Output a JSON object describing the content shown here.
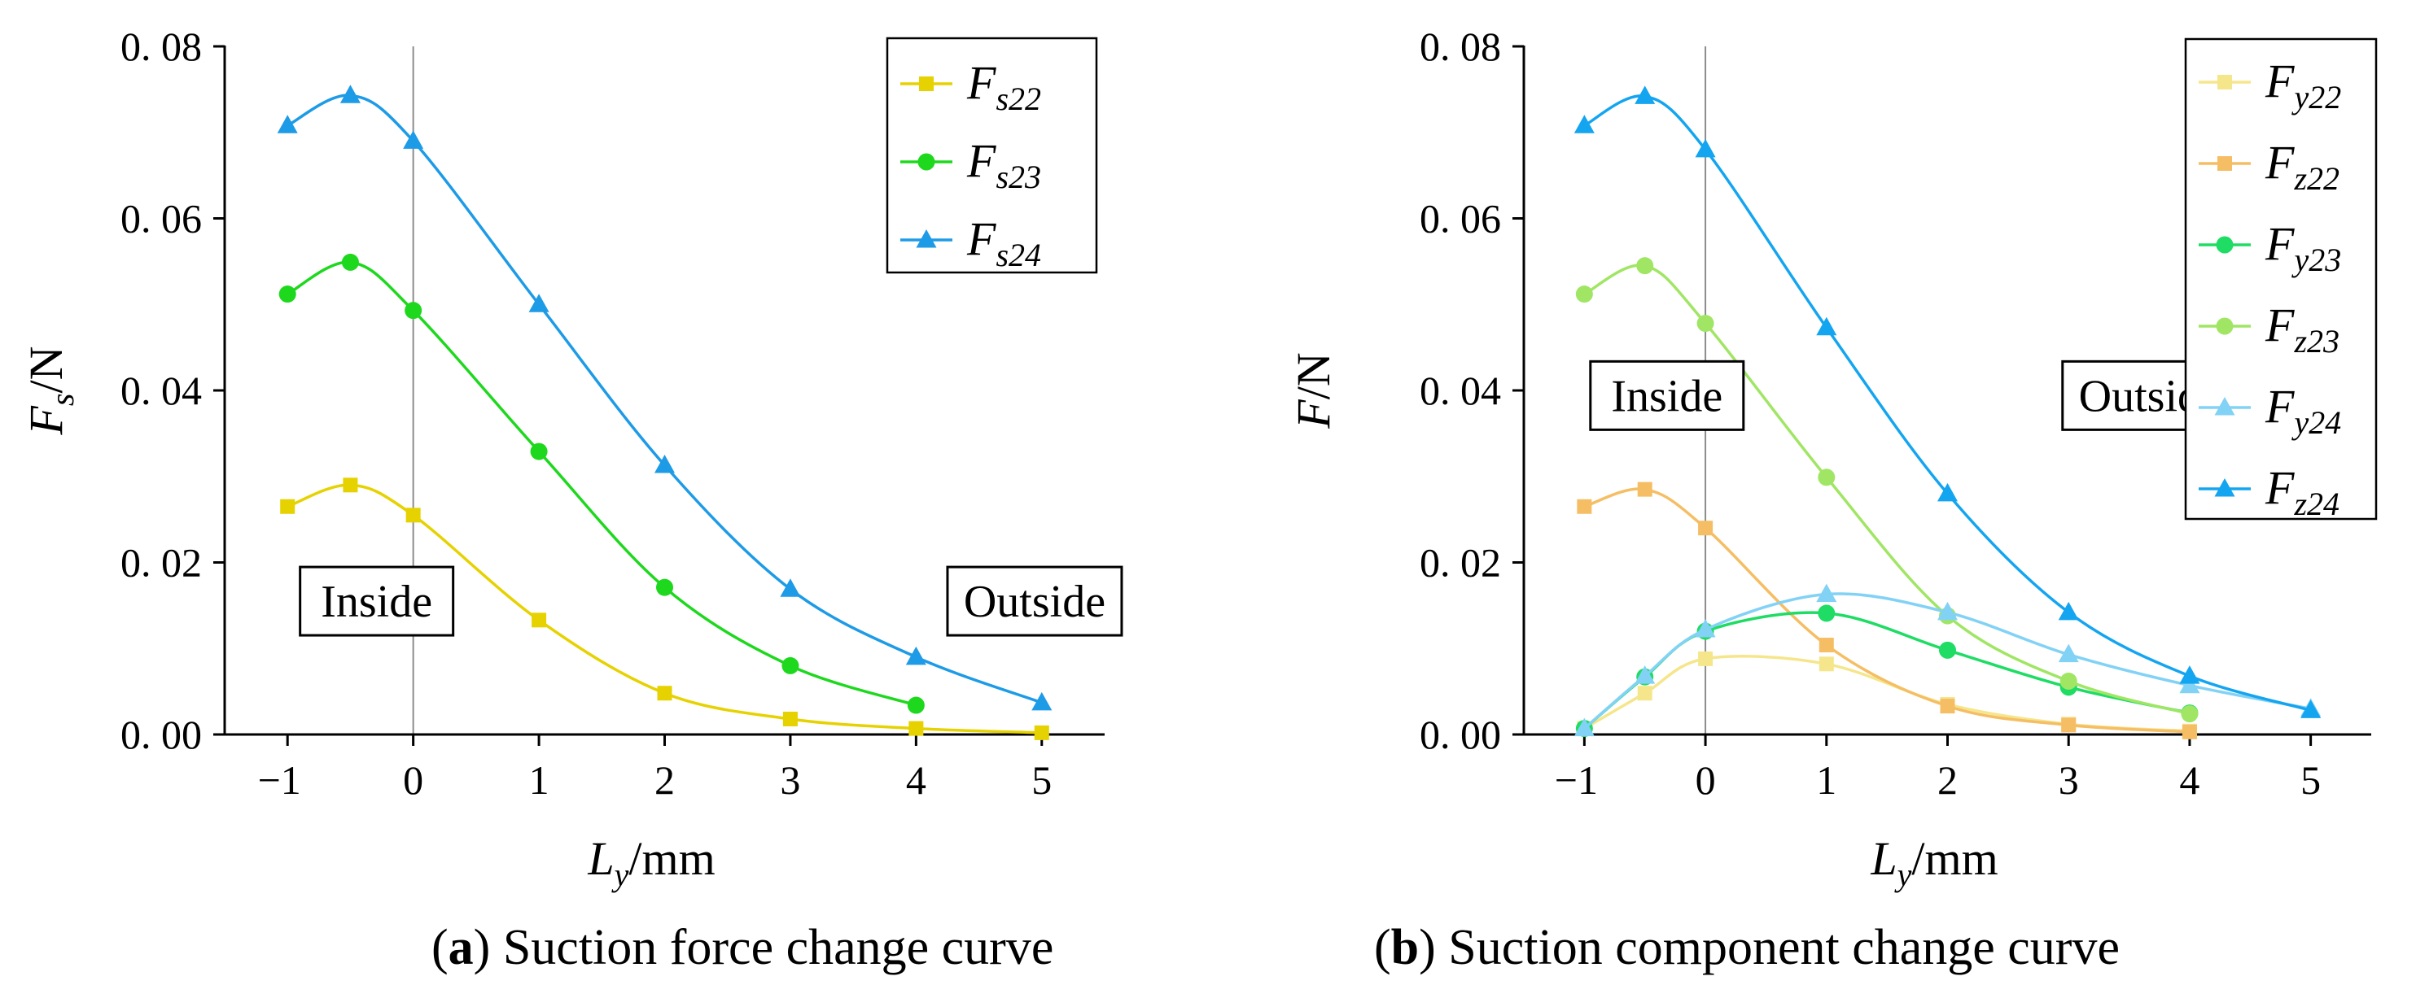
{
  "chart_data": [
    {
      "type": "line",
      "panel": "a",
      "caption_letter": "a",
      "caption_text": "Suction force change curve",
      "ylabel": {
        "main": "F",
        "sub": "s",
        "rest": "/N"
      },
      "xlabel": {
        "main": "L",
        "sub": "y",
        "rest": "/mm"
      },
      "xlim": [
        -1.5,
        5.5
      ],
      "ylim": [
        0,
        0.08
      ],
      "xticks": [
        {
          "value": -1,
          "label": "−1"
        },
        {
          "value": 0,
          "label": "0",
          "color": "#e8191e"
        },
        {
          "value": 1,
          "label": "1"
        },
        {
          "value": 2,
          "label": "2"
        },
        {
          "value": 3,
          "label": "3"
        },
        {
          "value": 4,
          "label": "4"
        },
        {
          "value": 5,
          "label": "5"
        }
      ],
      "yticks": [
        {
          "value": 0,
          "label": "0. 00"
        },
        {
          "value": 0.02,
          "label": "0. 02"
        },
        {
          "value": 0.04,
          "label": "0. 04"
        },
        {
          "value": 0.06,
          "label": "0. 06"
        },
        {
          "value": 0.08,
          "label": "0. 08"
        }
      ],
      "annotations": [
        {
          "text": "Inside",
          "x": -0.9,
          "y": 0.0155
        },
        {
          "text": "Outside",
          "x": 4.25,
          "y": 0.0155
        }
      ],
      "legend_position": "top-right",
      "series": [
        {
          "name": "Fs22",
          "main": "F",
          "sub": "s22",
          "color": "#e6d200",
          "marker": "square",
          "x": [
            -1,
            -0.5,
            0,
            1,
            2,
            3,
            4,
            5
          ],
          "y": [
            0.0265,
            0.029,
            0.0255,
            0.0133,
            0.0048,
            0.0018,
            0.0007,
            0.0002
          ]
        },
        {
          "name": "Fs23",
          "main": "F",
          "sub": "s23",
          "color": "#1ed81e",
          "marker": "circle",
          "x": [
            -1,
            -0.5,
            0,
            1,
            2,
            3,
            4
          ],
          "y": [
            0.0512,
            0.0549,
            0.0493,
            0.0329,
            0.0171,
            0.008,
            0.0034
          ]
        },
        {
          "name": "Fs24",
          "main": "F",
          "sub": "s24",
          "color": "#1e9be6",
          "marker": "triangle",
          "x": [
            -1,
            -0.5,
            0,
            1,
            2,
            3,
            4,
            5
          ],
          "y": [
            0.0708,
            0.0743,
            0.069,
            0.05,
            0.0313,
            0.0169,
            0.009,
            0.0037
          ]
        }
      ]
    },
    {
      "type": "line",
      "panel": "b",
      "caption_letter": "b",
      "caption_text": "Suction component change curve",
      "ylabel": {
        "main": "F",
        "sub": "",
        "rest": "/N"
      },
      "xlabel": {
        "main": "L",
        "sub": "y",
        "rest": "/mm"
      },
      "xlim": [
        -1.5,
        5.5
      ],
      "ylim": [
        0,
        0.08
      ],
      "xticks": [
        {
          "value": -1,
          "label": "−1"
        },
        {
          "value": 0,
          "label": "0",
          "color": "#e8191e"
        },
        {
          "value": 1,
          "label": "1"
        },
        {
          "value": 2,
          "label": "2"
        },
        {
          "value": 3,
          "label": "3"
        },
        {
          "value": 4,
          "label": "4"
        },
        {
          "value": 5,
          "label": "5"
        }
      ],
      "yticks": [
        {
          "value": 0,
          "label": "0. 00"
        },
        {
          "value": 0.02,
          "label": "0. 02"
        },
        {
          "value": 0.04,
          "label": "0. 04"
        },
        {
          "value": 0.06,
          "label": "0. 06"
        },
        {
          "value": 0.08,
          "label": "0. 08"
        }
      ],
      "annotations": [
        {
          "text": "Inside",
          "x": -0.95,
          "y": 0.0394
        },
        {
          "text": "Outside",
          "x": 2.95,
          "y": 0.0394
        }
      ],
      "legend_position": "top-right",
      "series": [
        {
          "name": "Fy22",
          "main": "F",
          "sub": "y22",
          "color": "#f5e68c",
          "marker": "square",
          "x": [
            -1,
            -0.5,
            0,
            1,
            2,
            3,
            4
          ],
          "y": [
            0.0007,
            0.0048,
            0.0088,
            0.0082,
            0.0035,
            0.0012,
            0.0004
          ]
        },
        {
          "name": "Fz22",
          "main": "F",
          "sub": "z22",
          "color": "#f5be64",
          "marker": "square",
          "x": [
            -1,
            -0.5,
            0,
            1,
            2,
            3,
            4
          ],
          "y": [
            0.0265,
            0.0285,
            0.024,
            0.0104,
            0.0033,
            0.0011,
            0.0003
          ]
        },
        {
          "name": "Fy23",
          "main": "F",
          "sub": "y23",
          "color": "#1edc64",
          "marker": "circle",
          "x": [
            -1,
            -0.5,
            0,
            1,
            2,
            3,
            4
          ],
          "y": [
            0.0007,
            0.0067,
            0.012,
            0.0141,
            0.0098,
            0.0055,
            0.0025
          ]
        },
        {
          "name": "Fz23",
          "main": "F",
          "sub": "z23",
          "color": "#a0e664",
          "marker": "circle",
          "x": [
            -1,
            -0.5,
            0,
            1,
            2,
            3,
            4
          ],
          "y": [
            0.0512,
            0.0545,
            0.0478,
            0.0299,
            0.0138,
            0.0062,
            0.0024
          ]
        },
        {
          "name": "Fy24",
          "main": "F",
          "sub": "y24",
          "color": "#82d2f5",
          "marker": "triangle",
          "x": [
            -1,
            -0.5,
            0,
            1,
            2,
            3,
            4,
            5
          ],
          "y": [
            0.0007,
            0.0068,
            0.0122,
            0.0163,
            0.0142,
            0.0093,
            0.0057,
            0.003
          ]
        },
        {
          "name": "Fz24",
          "main": "F",
          "sub": "z24",
          "color": "#14a5f0",
          "marker": "triangle",
          "x": [
            -1,
            -0.5,
            0,
            1,
            2,
            3,
            4,
            5
          ],
          "y": [
            0.0708,
            0.0742,
            0.068,
            0.0473,
            0.028,
            0.0142,
            0.0068,
            0.0028
          ]
        }
      ]
    }
  ]
}
